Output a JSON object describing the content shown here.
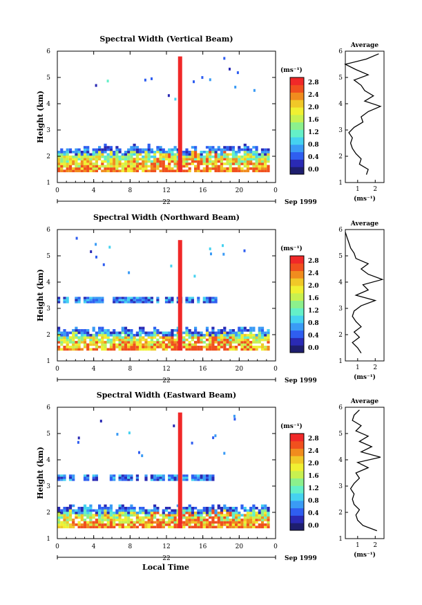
{
  "panels": [
    {
      "title": "Spectral Width (Vertical Beam)",
      "beam": "vertical",
      "cb_unit": "(ms⁻¹)",
      "cb_ticks": [
        "0.0",
        "0.4",
        "0.8",
        "1.2",
        "1.6",
        "2.0",
        "2.4",
        "2.8"
      ],
      "date": "Sep 1999",
      "day": "22",
      "ylabel": "Height (km)",
      "x_ticks": [
        "0",
        "4",
        "8",
        "12",
        "16",
        "20",
        "0"
      ],
      "y_ticks": [
        "1",
        "2",
        "3",
        "4",
        "5",
        "6"
      ],
      "avg_title": "Average",
      "avg_xlabel": "(ms⁻¹)",
      "avg_x_ticks": [
        "1",
        "2"
      ]
    },
    {
      "title": "Spectral Width (Northward Beam)",
      "beam": "northward",
      "cb_unit": "(ms⁻¹)",
      "cb_ticks": [
        "0.0",
        "0.4",
        "0.8",
        "1.2",
        "1.6",
        "2.0",
        "2.4",
        "2.8"
      ],
      "date": "Sep 1999",
      "day": "22",
      "ylabel": "Height (km)",
      "x_ticks": [
        "0",
        "4",
        "8",
        "12",
        "16",
        "20",
        "0"
      ],
      "y_ticks": [
        "1",
        "2",
        "3",
        "4",
        "5",
        "6"
      ],
      "avg_title": "Average",
      "avg_xlabel": "(ms⁻¹)",
      "avg_x_ticks": [
        "1",
        "2"
      ]
    },
    {
      "title": "Spectral Width (Eastward Beam)",
      "beam": "eastward",
      "cb_unit": "(ms⁻¹)",
      "cb_ticks": [
        "0.0",
        "0.4",
        "0.8",
        "1.2",
        "1.6",
        "2.0",
        "2.4",
        "2.8"
      ],
      "date": "Sep 1999",
      "day": "22",
      "ylabel": "Height (km)",
      "x_ticks": [
        "0",
        "4",
        "8",
        "12",
        "16",
        "20",
        "0"
      ],
      "y_ticks": [
        "1",
        "2",
        "3",
        "4",
        "5",
        "6"
      ],
      "avg_title": "Average",
      "avg_xlabel": "(ms⁻¹)",
      "avg_x_ticks": [
        "1",
        "2"
      ]
    }
  ],
  "xlabel": "Local Time",
  "colormap": [
    "#1e1e6e",
    "#2a2ab4",
    "#2f5ef0",
    "#3a9bf5",
    "#45d2f0",
    "#64f0c8",
    "#8cf08c",
    "#c8f050",
    "#f0f032",
    "#f0c828",
    "#f08c1e",
    "#f0501e",
    "#f02828"
  ],
  "chart_data": [
    {
      "type": "heatmap",
      "title": "Spectral Width (Vertical Beam)",
      "xlabel": "Local Time",
      "ylabel": "Height (km)",
      "xlim": [
        0,
        24
      ],
      "ylim": [
        1,
        6
      ],
      "colorbar_label": "(ms⁻¹)",
      "colorbar_range": [
        0.0,
        3.0
      ],
      "data_region": {
        "height_km": [
          1.4,
          2.4
        ],
        "hours": [
          0,
          23.3
        ]
      },
      "spike": {
        "hour": 13.5,
        "height_km": [
          1.4,
          5.8
        ],
        "value": 3.0
      },
      "average_profile": {
        "title": "Average",
        "xlabel": "(ms⁻¹)",
        "xlim": [
          0.3,
          2.5
        ],
        "height_km": [
          1.3,
          1.5,
          1.7,
          1.9,
          2.1,
          2.3,
          2.5,
          2.7,
          2.9,
          3.1,
          3.3,
          3.5,
          3.7,
          3.9,
          4.1,
          4.3,
          4.5,
          4.7,
          4.9,
          5.1,
          5.3,
          5.5,
          5.7,
          5.9
        ],
        "value": [
          1.5,
          1.6,
          1.1,
          1.2,
          0.9,
          0.7,
          0.6,
          0.7,
          0.5,
          0.8,
          1.3,
          1.2,
          1.6,
          2.3,
          1.4,
          1.9,
          1.4,
          1.2,
          0.8,
          1.6,
          0.9,
          0.3,
          1.5,
          2.2
        ]
      }
    },
    {
      "type": "heatmap",
      "title": "Spectral Width (Northward Beam)",
      "xlabel": "Local Time",
      "ylabel": "Height (km)",
      "xlim": [
        0,
        24
      ],
      "ylim": [
        1,
        6
      ],
      "colorbar_label": "(ms⁻¹)",
      "colorbar_range": [
        0.0,
        3.0
      ],
      "data_region": {
        "height_km": [
          1.4,
          2.3
        ],
        "hours": [
          0,
          23.3
        ]
      },
      "secondary_layer": {
        "height_km": [
          3.2,
          3.4
        ],
        "hours": [
          0,
          17.5
        ]
      },
      "spike": {
        "hour": 13.5,
        "height_km": [
          1.4,
          5.6
        ],
        "value": 3.0
      },
      "average_profile": {
        "title": "Average",
        "xlabel": "(ms⁻¹)",
        "xlim": [
          0.3,
          2.5
        ],
        "height_km": [
          1.3,
          1.5,
          1.7,
          1.9,
          2.1,
          2.3,
          2.5,
          2.7,
          2.9,
          3.1,
          3.3,
          3.5,
          3.7,
          3.9,
          4.1,
          4.3,
          4.5,
          4.7,
          4.9,
          5.1,
          5.3,
          5.5,
          5.7,
          5.9
        ],
        "value": [
          1.2,
          1.0,
          0.7,
          1.1,
          0.8,
          1.2,
          0.9,
          0.7,
          0.8,
          1.2,
          2.0,
          0.9,
          1.6,
          1.3,
          2.4,
          1.6,
          1.2,
          1.6,
          0.9,
          0.8,
          0.6,
          0.5,
          0.4,
          0.3
        ]
      }
    },
    {
      "type": "heatmap",
      "title": "Spectral Width (Eastward Beam)",
      "xlabel": "Local Time",
      "ylabel": "Height (km)",
      "xlim": [
        0,
        24
      ],
      "ylim": [
        1,
        6
      ],
      "colorbar_label": "(ms⁻¹)",
      "colorbar_range": [
        0.0,
        3.0
      ],
      "data_region": {
        "height_km": [
          1.4,
          2.3
        ],
        "hours": [
          0,
          23.3
        ]
      },
      "secondary_layer": {
        "height_km": [
          3.2,
          3.4
        ],
        "hours": [
          0,
          17.5
        ]
      },
      "spike": {
        "hour": 13.5,
        "height_km": [
          1.4,
          5.8
        ],
        "value": 3.0
      },
      "average_profile": {
        "title": "Average",
        "xlabel": "(ms⁻¹)",
        "xlim": [
          0.3,
          2.5
        ],
        "height_km": [
          1.3,
          1.5,
          1.7,
          1.9,
          2.1,
          2.3,
          2.5,
          2.7,
          2.9,
          3.1,
          3.3,
          3.5,
          3.7,
          3.9,
          4.1,
          4.3,
          4.5,
          4.7,
          4.9,
          5.1,
          5.3,
          5.5,
          5.7,
          5.9
        ],
        "value": [
          2.1,
          1.3,
          1.0,
          0.9,
          1.1,
          0.8,
          0.7,
          0.8,
          0.6,
          0.8,
          1.1,
          0.9,
          1.6,
          1.0,
          2.3,
          1.2,
          1.8,
          1.1,
          1.6,
          0.9,
          1.2,
          0.7,
          0.8,
          1.1
        ]
      }
    }
  ]
}
